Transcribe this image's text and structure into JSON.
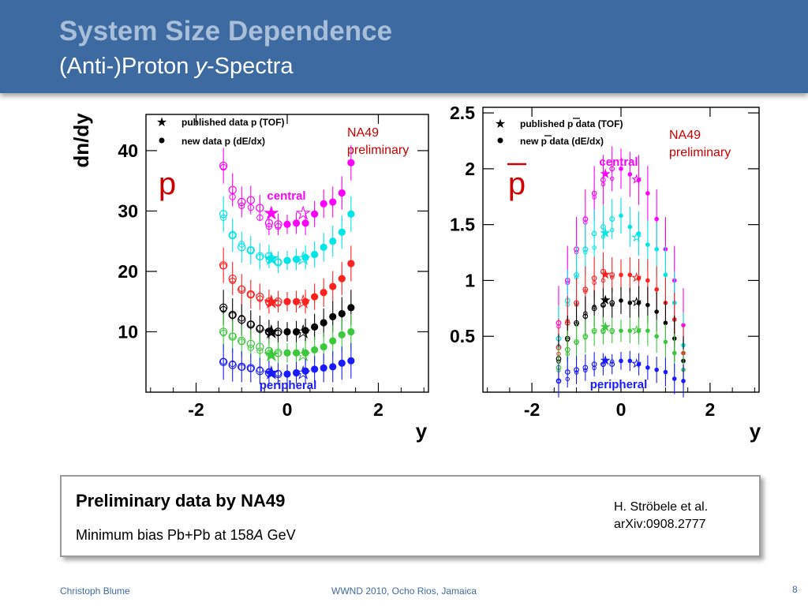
{
  "slide": {
    "title": "System Size Dependence",
    "subtitle_prefix": "(Anti-)Proton ",
    "subtitle_var": "y",
    "subtitle_suffix": "-Spectra",
    "note_left_line1": "NA49",
    "note_left_line2": "preliminary",
    "note_right_line1": "NA49",
    "note_right_line2": "preliminary",
    "infobox": {
      "heading": "Preliminary data by NA49",
      "line_prefix": "Minimum bias Pb+Pb at 158",
      "line_var": "A",
      "line_suffix": " GeV",
      "ref_line1": "H. Ströbele et al.",
      "ref_line2": "arXiv:0908.2777"
    },
    "footer": {
      "author": "Christoph Blume",
      "event": "WWND 2010, Ocho Rios, Jamaica",
      "page": "8"
    }
  },
  "colors": {
    "header_bg": "#3d6aa0",
    "central": "#ff00ff",
    "c2": "#00e5e5",
    "c3": "#ff2020",
    "c4": "#000000",
    "c5": "#3cc83c",
    "peripheral": "#1a1aff"
  },
  "chart_data": [
    {
      "type": "scatter",
      "particle_label": "p",
      "ylabel": "dn/dy",
      "xlabel": "y",
      "xlim": [
        -3.1,
        3.1
      ],
      "ylim": [
        0,
        46
      ],
      "xticks": [
        "-2",
        "0",
        "2"
      ],
      "yticks": [
        "10",
        "20",
        "30",
        "40"
      ],
      "legend": [
        "published data p (TOF)",
        "new data p (dE/dx)"
      ],
      "label_central": "central",
      "label_peripheral": "peripheral",
      "x": [
        -1.4,
        -1.2,
        -1.0,
        -0.8,
        -0.6,
        -0.4,
        -0.2,
        0.0,
        0.2,
        0.4,
        0.6,
        0.8,
        1.0,
        1.2,
        1.4
      ],
      "tof_x": [
        -0.35,
        0.35
      ],
      "series": [
        {
          "values": [
            37.5,
            33.5,
            31.5,
            31.8,
            30.5,
            28.0,
            27.8,
            27.8,
            28.0,
            28.0,
            29.5,
            31.2,
            31.5,
            33.0,
            38.0
          ],
          "tof": [
            29.5,
            29.5
          ]
        },
        {
          "values": [
            29.5,
            26.0,
            24.0,
            23.5,
            22.5,
            22.5,
            21.5,
            21.8,
            22.0,
            22.3,
            22.8,
            24.0,
            25.0,
            26.5,
            29.5
          ],
          "tof": [
            22.0,
            22.0
          ]
        },
        {
          "values": [
            21.0,
            18.8,
            17.0,
            16.2,
            15.8,
            15.0,
            15.0,
            15.0,
            15.0,
            15.0,
            15.8,
            16.5,
            17.5,
            18.8,
            21.3
          ],
          "tof": [
            14.8,
            14.8
          ]
        },
        {
          "values": [
            14.0,
            12.8,
            12.0,
            11.2,
            10.5,
            10.0,
            10.0,
            10.0,
            10.0,
            10.2,
            10.8,
            11.5,
            12.5,
            13.0,
            14.0
          ],
          "tof": [
            9.8,
            9.8
          ]
        },
        {
          "values": [
            10.0,
            9.2,
            8.5,
            8.0,
            7.5,
            6.8,
            6.5,
            6.5,
            6.5,
            6.5,
            7.0,
            7.5,
            8.5,
            9.5,
            10.0
          ],
          "tof": [
            6.0,
            6.0
          ]
        },
        {
          "values": [
            5.0,
            4.5,
            4.2,
            4.0,
            3.5,
            3.2,
            3.0,
            3.0,
            3.2,
            3.5,
            3.8,
            4.0,
            4.2,
            4.8,
            5.2
          ],
          "tof": [
            3.0,
            3.0
          ]
        }
      ]
    },
    {
      "type": "scatter",
      "particle_label": "p",
      "ylabel": "",
      "xlabel": "y",
      "xlim": [
        -3.1,
        3.1
      ],
      "ylim": [
        0,
        2.55
      ],
      "xticks": [
        "-2",
        "0",
        "2"
      ],
      "yticks": [
        "0.5",
        "1",
        "1.5",
        "2",
        "2.5"
      ],
      "legend": [
        "published p data (TOF)",
        "new p data (dE/dx)"
      ],
      "label_central": "central",
      "label_peripheral": "peripheral",
      "x": [
        -1.4,
        -1.2,
        -1.0,
        -0.8,
        -0.6,
        -0.4,
        -0.2,
        0.0,
        0.2,
        0.4,
        0.6,
        0.8,
        1.0,
        1.2,
        1.4
      ],
      "tof_x": [
        -0.35,
        0.35
      ],
      "series": [
        {
          "values": [
            0.62,
            1.0,
            1.28,
            1.55,
            1.78,
            1.9,
            2.0,
            2.0,
            1.95,
            1.9,
            1.78,
            1.55,
            1.28,
            1.0,
            0.6
          ],
          "tof": [
            1.95,
            1.9
          ]
        },
        {
          "values": [
            0.48,
            0.82,
            1.05,
            1.28,
            1.42,
            1.48,
            1.55,
            1.58,
            1.48,
            1.42,
            1.32,
            1.28,
            1.05,
            0.8,
            0.42
          ],
          "tof": [
            1.42,
            1.38
          ]
        },
        {
          "values": [
            0.4,
            0.62,
            0.8,
            0.92,
            1.02,
            1.08,
            1.05,
            1.05,
            1.05,
            1.02,
            1.0,
            0.92,
            0.8,
            0.65,
            0.35
          ],
          "tof": [
            1.05,
            1.02
          ]
        },
        {
          "values": [
            0.3,
            0.48,
            0.62,
            0.68,
            0.75,
            0.78,
            0.8,
            0.82,
            0.8,
            0.8,
            0.78,
            0.72,
            0.62,
            0.48,
            0.28
          ],
          "tof": [
            0.82,
            0.8
          ]
        },
        {
          "values": [
            0.22,
            0.38,
            0.45,
            0.5,
            0.55,
            0.55,
            0.55,
            0.55,
            0.55,
            0.55,
            0.55,
            0.5,
            0.45,
            0.35,
            0.2
          ],
          "tof": [
            0.58,
            0.55
          ]
        },
        {
          "values": [
            0.1,
            0.18,
            0.2,
            0.22,
            0.25,
            0.25,
            0.25,
            0.28,
            0.28,
            0.25,
            0.22,
            0.2,
            0.18,
            0.12,
            0.1
          ],
          "tof": [
            0.28,
            0.25
          ]
        }
      ]
    }
  ]
}
